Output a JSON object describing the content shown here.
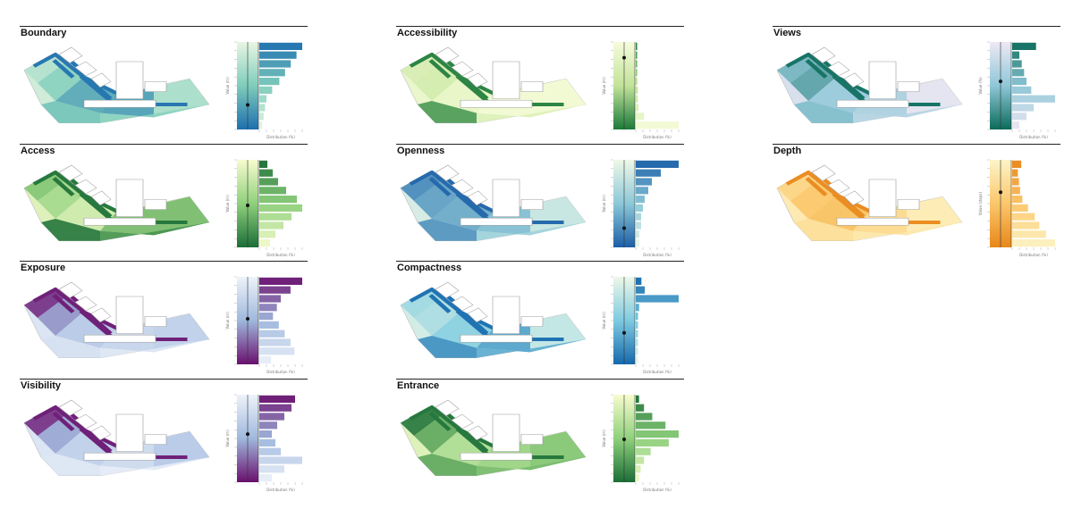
{
  "panels": [
    {
      "title": "Boundary",
      "chart_data": {
        "type": "bar",
        "orientation": "horizontal",
        "ylabel": "Value (m)",
        "xlabel": "Distribution (%)",
        "values": [
          2,
          3,
          4,
          5,
          9,
          14,
          18,
          22,
          26,
          30
        ],
        "marker": 0.28,
        "colormap": [
          "#e8f6e3",
          "#7fcdbb",
          "#1d6fb0"
        ]
      }
    },
    {
      "title": "Accessibility",
      "chart_data": {
        "type": "bar",
        "orientation": "horizontal",
        "ylabel": "Value (m)",
        "xlabel": "Distribution (%)",
        "values": [
          62,
          12,
          4,
          3,
          3,
          2,
          2,
          2,
          2,
          2
        ],
        "marker": 0.82,
        "colormap": [
          "#f7fcdc",
          "#c2e39a",
          "#1b7a3a"
        ]
      }
    },
    {
      "title": "Views",
      "chart_data": {
        "type": "bar",
        "orientation": "horizontal",
        "ylabel": "Value (%)",
        "xlabel": "Distribution (%)",
        "values": [
          3,
          6,
          9,
          18,
          8,
          6,
          5,
          4,
          3,
          10
        ],
        "marker": 0.55,
        "colormap": [
          "#efe8f4",
          "#8ec7d8",
          "#0b6b5a"
        ]
      }
    },
    {
      "title": "Access",
      "chart_data": {
        "type": "bar",
        "orientation": "horizontal",
        "ylabel": "Value (m)",
        "xlabel": "Distribution (%)",
        "values": [
          4,
          6,
          9,
          12,
          16,
          14,
          10,
          7,
          5,
          3
        ],
        "marker": 0.48,
        "colormap": [
          "#f7fcce",
          "#8fd07c",
          "#1b6e37"
        ]
      }
    },
    {
      "title": "Openness",
      "chart_data": {
        "type": "bar",
        "orientation": "horizontal",
        "ylabel": "Value (m)",
        "xlabel": "Distribution (%)",
        "values": [
          2,
          2,
          3,
          3,
          4,
          5,
          7,
          9,
          14,
          24
        ],
        "marker": 0.22,
        "colormap": [
          "#eef8e8",
          "#8cc8d8",
          "#1a5fa7"
        ]
      }
    },
    {
      "title": "Depth",
      "chart_data": {
        "type": "bar",
        "orientation": "horizontal",
        "ylabel": "Value (steps)",
        "xlabel": "Distribution (%)",
        "values": [
          38,
          30,
          24,
          20,
          14,
          9,
          7,
          6,
          5,
          8
        ],
        "marker": 0.63,
        "colormap": [
          "#fdf4c8",
          "#fbc76b",
          "#e8871a"
        ]
      }
    },
    {
      "title": "Exposure",
      "chart_data": {
        "type": "bar",
        "orientation": "horizontal",
        "ylabel": "Value (m)",
        "xlabel": "Distribution (%)",
        "values": [
          6,
          18,
          16,
          13,
          10,
          7,
          9,
          11,
          16,
          22
        ],
        "marker": 0.52,
        "colormap": [
          "#eef3fa",
          "#9fb8dd",
          "#6a0f6e"
        ]
      }
    },
    {
      "title": "Compactness",
      "chart_data": {
        "type": "bar",
        "orientation": "horizontal",
        "ylabel": "Value (m)",
        "xlabel": "Distribution (%)",
        "values": [
          2,
          2,
          2,
          2,
          2,
          2,
          3,
          38,
          8,
          5
        ],
        "marker": 0.36,
        "colormap": [
          "#eef8e8",
          "#7ecae0",
          "#1569ad"
        ]
      }
    },
    {
      "title": "Entrance",
      "chart_data": {
        "type": "bar",
        "orientation": "horizontal",
        "ylabel": "Value (m)",
        "xlabel": "Distribution (%)",
        "values": [
          2,
          3,
          5,
          9,
          20,
          26,
          18,
          10,
          5,
          2
        ],
        "marker": 0.49,
        "colormap": [
          "#f7fcce",
          "#8fd07c",
          "#1b6e37"
        ]
      }
    },
    {
      "title": "Visibility",
      "chart_data": {
        "type": "bar",
        "orientation": "horizontal",
        "ylabel": "Value (m)",
        "xlabel": "Distribution (%)",
        "values": [
          7,
          14,
          24,
          12,
          9,
          7,
          10,
          14,
          18,
          20
        ],
        "marker": 0.55,
        "colormap": [
          "#eef3fa",
          "#9fb8dd",
          "#6a0f6e"
        ]
      }
    }
  ]
}
